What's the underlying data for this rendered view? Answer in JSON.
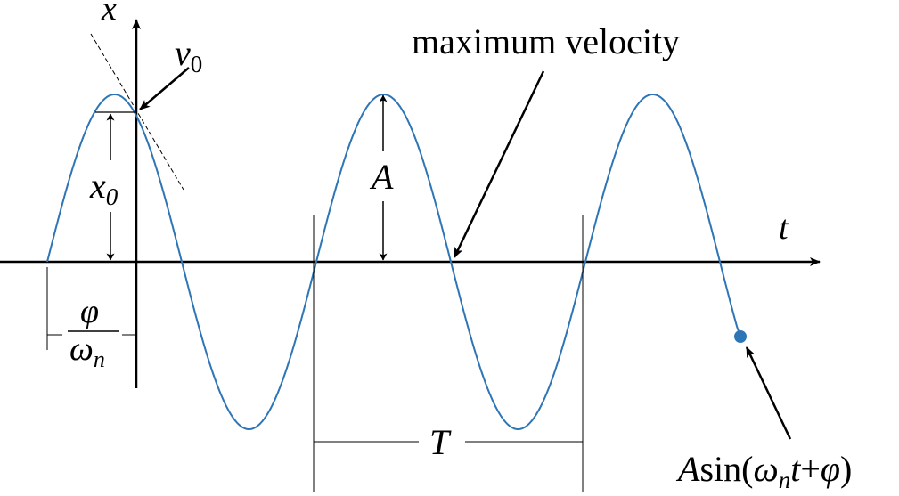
{
  "labels": {
    "x_axis": "x",
    "t_axis": "t",
    "v0_main": "v",
    "v0_sub": "0",
    "x0_main": "x",
    "x0_sub": "0",
    "amplitude": "A",
    "phase_num": "φ",
    "phase_den_main": "ω",
    "phase_den_sub": "n",
    "period": "T",
    "max_velocity": "maximum velocity",
    "curve_A": "A",
    "curve_sin_open": "sin(",
    "curve_omega": "ω",
    "curve_n": "n",
    "curve_t": "t",
    "curve_plus": "+",
    "curve_phi": "φ",
    "curve_close": ")"
  },
  "colors": {
    "curve": "#2e75b6",
    "axes": "#000000",
    "dot": "#2e75b6"
  }
}
